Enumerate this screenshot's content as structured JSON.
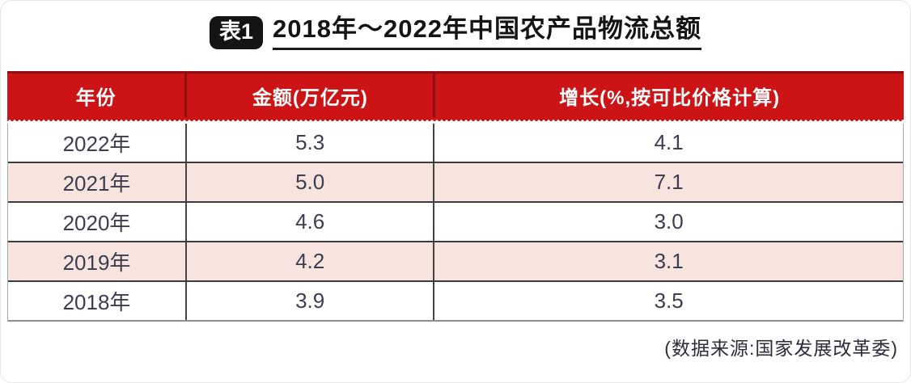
{
  "title": {
    "badge": "表1",
    "text": "2018年～2022年中国农产品物流总额"
  },
  "table": {
    "columns": [
      "年份",
      "金额(万亿元)",
      "增长(%,按可比价格计算)"
    ],
    "rows": [
      {
        "year": "2022年",
        "amount": "5.3",
        "growth": "4.1"
      },
      {
        "year": "2021年",
        "amount": "5.0",
        "growth": "7.1"
      },
      {
        "year": "2020年",
        "amount": "4.6",
        "growth": "3.0"
      },
      {
        "year": "2019年",
        "amount": "4.2",
        "growth": "3.1"
      },
      {
        "year": "2018年",
        "amount": "3.9",
        "growth": "3.5"
      }
    ]
  },
  "source_note": "(数据来源:国家发展改革委)",
  "colors": {
    "header_bg": "#cc1416",
    "header_divider": "#8a1012",
    "header_text": "#ffffff",
    "row_pink": "#f7e4df",
    "row_white": "#ffffff",
    "body_text": "#3d3d52",
    "row_border": "#3c3c3c",
    "badge_bg": "#141414",
    "title_color": "#141414"
  },
  "chart_data": {
    "type": "table",
    "title": "2018年～2022年中国农产品物流总额",
    "columns": [
      "年份",
      "金额(万亿元)",
      "增长(%,按可比价格计算)"
    ],
    "rows": [
      [
        "2022年",
        5.3,
        4.1
      ],
      [
        "2021年",
        5.0,
        7.1
      ],
      [
        "2020年",
        4.6,
        3.0
      ],
      [
        "2019年",
        4.2,
        3.1
      ],
      [
        "2018年",
        3.9,
        3.5
      ]
    ],
    "source": "(数据来源:国家发展改革委)"
  }
}
